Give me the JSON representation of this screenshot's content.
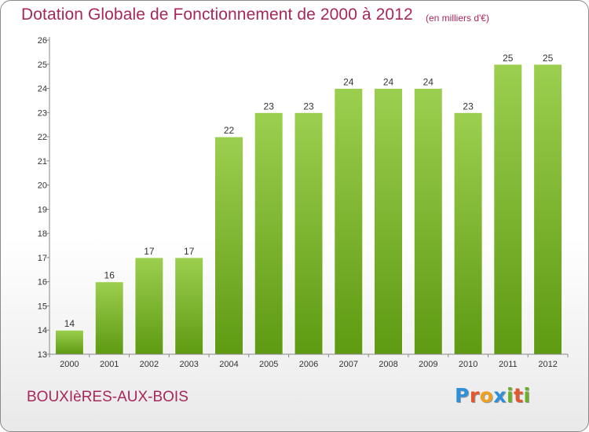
{
  "title": "Dotation Globale de Fonctionnement de 2000 à 2012",
  "unit_note": "(en milliers d'€)",
  "commune": "BOUXIèRES-AUX-BOIS",
  "logo": {
    "p": "P",
    "r": "r",
    "o": "o",
    "x": "x",
    "i1": "i",
    "t": "t",
    "i2": "i"
  },
  "colors": {
    "title": "#a8265a",
    "bar_light": "#9ccf4f",
    "bar_dark": "#5e9a12",
    "axis": "#888888"
  },
  "chart_data": {
    "type": "bar",
    "title": "Dotation Globale de Fonctionnement de 2000 à 2012",
    "subtitle": "(en milliers d'€)",
    "categories": [
      "2000",
      "2001",
      "2002",
      "2003",
      "2004",
      "2005",
      "2006",
      "2007",
      "2008",
      "2009",
      "2010",
      "2011",
      "2012"
    ],
    "values": [
      14,
      16,
      17,
      17,
      22,
      23,
      23,
      24,
      24,
      24,
      23,
      25,
      25
    ],
    "ylim": [
      13,
      26
    ],
    "yticks": [
      13,
      14,
      15,
      16,
      17,
      18,
      19,
      20,
      21,
      22,
      23,
      24,
      25,
      26
    ],
    "xlabel": "",
    "ylabel": "",
    "grid": false,
    "legend": "none"
  }
}
